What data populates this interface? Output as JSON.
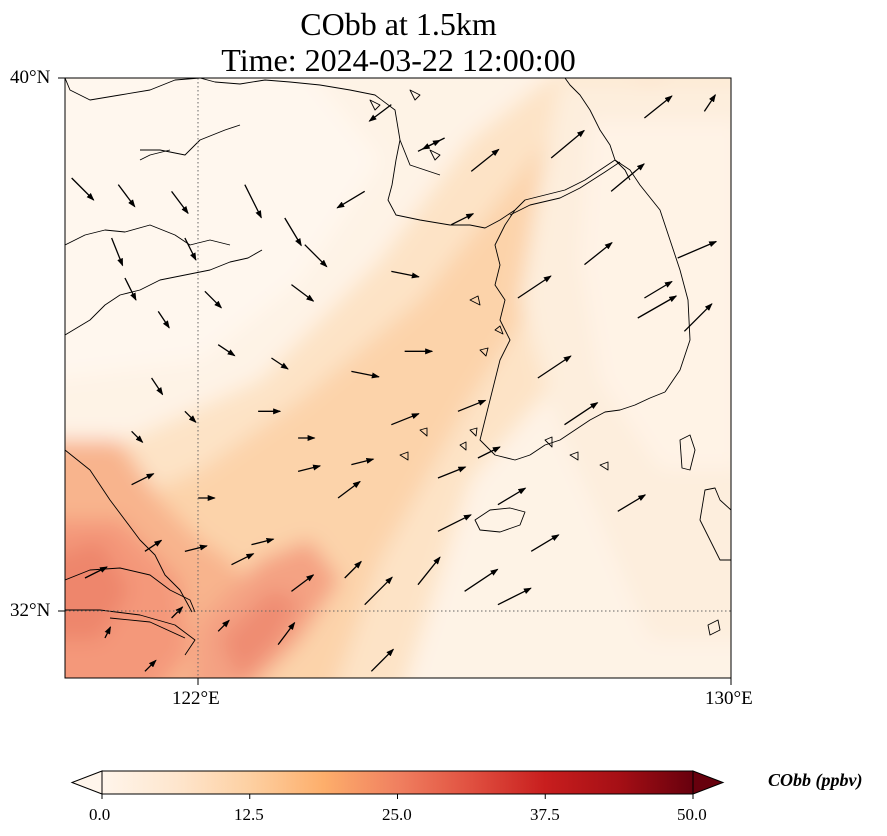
{
  "title": {
    "line1": "CObb at 1.5km",
    "line2": "Time: 2024-03-22 12:00:00"
  },
  "map": {
    "lon_range": [
      120,
      130
    ],
    "lat_range": [
      31,
      40
    ],
    "gridlines": {
      "lon": [
        122
      ],
      "lat": [
        32
      ]
    },
    "lat_ticks": [
      {
        "value": 40,
        "label": "40°N"
      },
      {
        "value": 32,
        "label": "32°N"
      }
    ],
    "lon_ticks": [
      {
        "value": 122,
        "label": "122°E"
      },
      {
        "value": 130,
        "label": "130°E"
      }
    ],
    "field": {
      "variable": "CObb",
      "units": "ppbv",
      "description_of_levels": "low values (0-6) over north/Shandong/Korea; moderate (10-18) band SW-NE over Yellow Sea; high (25-32) near Shanghai/Yangtze region"
    },
    "wind_vectors": [
      [
        120.1,
        38.5,
        0.4,
        -0.4
      ],
      [
        120.8,
        38.4,
        0.3,
        -0.4
      ],
      [
        121.6,
        38.3,
        0.3,
        -0.4
      ],
      [
        123.3,
        37.9,
        0.3,
        -0.5
      ],
      [
        124.9,
        39.6,
        -0.4,
        -0.3
      ],
      [
        120.7,
        37.6,
        0.2,
        -0.5
      ],
      [
        121.8,
        37.6,
        0.2,
        -0.4
      ],
      [
        122.7,
        38.4,
        0.3,
        -0.6
      ],
      [
        123.6,
        37.5,
        0.4,
        -0.4
      ],
      [
        124.5,
        38.3,
        -0.5,
        -0.3
      ],
      [
        120.9,
        37.0,
        0.2,
        -0.4
      ],
      [
        122.1,
        36.8,
        0.3,
        -0.3
      ],
      [
        123.4,
        36.9,
        0.4,
        -0.3
      ],
      [
        124.9,
        37.1,
        0.5,
        -0.1
      ],
      [
        125.7,
        39.1,
        -0.4,
        -0.2
      ],
      [
        121.4,
        36.5,
        0.2,
        -0.3
      ],
      [
        122.3,
        36.0,
        0.3,
        -0.2
      ],
      [
        123.1,
        35.8,
        0.3,
        -0.2
      ],
      [
        124.3,
        35.6,
        0.5,
        -0.1
      ],
      [
        125.1,
        35.9,
        0.5,
        0.0
      ],
      [
        121.3,
        35.5,
        0.2,
        -0.3
      ],
      [
        121.8,
        35.0,
        0.2,
        -0.2
      ],
      [
        122.9,
        35.0,
        0.4,
        0.0
      ],
      [
        123.5,
        34.6,
        0.3,
        0.0
      ],
      [
        124.3,
        34.2,
        0.4,
        0.1
      ],
      [
        121.0,
        34.7,
        0.2,
        -0.2
      ],
      [
        122.0,
        33.7,
        0.3,
        0.0
      ],
      [
        123.5,
        34.1,
        0.4,
        0.1
      ],
      [
        124.9,
        34.8,
        0.5,
        0.2
      ],
      [
        125.6,
        34.0,
        0.5,
        0.2
      ],
      [
        121.0,
        33.9,
        0.4,
        0.2
      ],
      [
        121.8,
        32.9,
        0.4,
        0.1
      ],
      [
        122.8,
        33.0,
        0.4,
        0.1
      ],
      [
        124.1,
        33.7,
        0.4,
        0.3
      ],
      [
        125.6,
        33.2,
        0.6,
        0.3
      ],
      [
        121.2,
        32.9,
        0.3,
        0.2
      ],
      [
        122.5,
        32.7,
        0.4,
        0.2
      ],
      [
        123.4,
        32.3,
        0.4,
        0.3
      ],
      [
        124.5,
        32.1,
        0.5,
        0.5
      ],
      [
        126.0,
        32.3,
        0.6,
        0.4
      ],
      [
        120.3,
        32.5,
        0.4,
        0.2
      ],
      [
        121.6,
        31.9,
        0.2,
        0.2
      ],
      [
        122.3,
        31.7,
        0.2,
        0.2
      ],
      [
        123.2,
        31.5,
        0.3,
        0.4
      ],
      [
        124.6,
        31.1,
        0.4,
        0.4
      ],
      [
        120.6,
        31.6,
        0.1,
        0.2
      ],
      [
        121.2,
        31.1,
        0.2,
        0.2
      ],
      [
        124.2,
        32.5,
        0.3,
        0.3
      ],
      [
        125.3,
        32.4,
        0.4,
        0.5
      ],
      [
        126.5,
        32.1,
        0.6,
        0.3
      ],
      [
        126.8,
        36.7,
        0.6,
        0.4
      ],
      [
        127.1,
        35.5,
        0.6,
        0.4
      ],
      [
        127.5,
        34.8,
        0.6,
        0.4
      ],
      [
        128.6,
        36.4,
        0.7,
        0.4
      ],
      [
        129.2,
        37.3,
        0.7,
        0.3
      ],
      [
        127.3,
        38.8,
        0.6,
        0.5
      ],
      [
        128.2,
        38.3,
        0.6,
        0.5
      ],
      [
        128.7,
        39.4,
        0.5,
        0.4
      ],
      [
        129.6,
        39.5,
        0.2,
        0.3
      ],
      [
        125.3,
        38.9,
        0.4,
        0.2
      ],
      [
        125.9,
        35.0,
        0.5,
        0.2
      ],
      [
        126.2,
        34.3,
        0.4,
        0.2
      ],
      [
        126.5,
        33.6,
        0.5,
        0.3
      ],
      [
        128.3,
        33.5,
        0.5,
        0.3
      ],
      [
        127.0,
        32.9,
        0.5,
        0.3
      ],
      [
        126.1,
        38.6,
        0.5,
        0.4
      ],
      [
        125.8,
        37.8,
        0.4,
        0.2
      ],
      [
        127.8,
        37.2,
        0.5,
        0.4
      ],
      [
        128.7,
        36.7,
        0.5,
        0.3
      ],
      [
        129.3,
        36.2,
        0.5,
        0.5
      ]
    ],
    "colorbar": {
      "label": "CObb (ppbv)",
      "min": 0,
      "max": 50,
      "ticks": [
        "0.0",
        "12.5",
        "25.0",
        "37.5",
        "50.0"
      ],
      "colors": [
        "#fff5eb",
        "#fee6ce",
        "#fdd0a2",
        "#fdae6b",
        "#fd8d3c",
        "#f16913",
        "#d94801",
        "#a50f15",
        "#67000d"
      ]
    }
  }
}
